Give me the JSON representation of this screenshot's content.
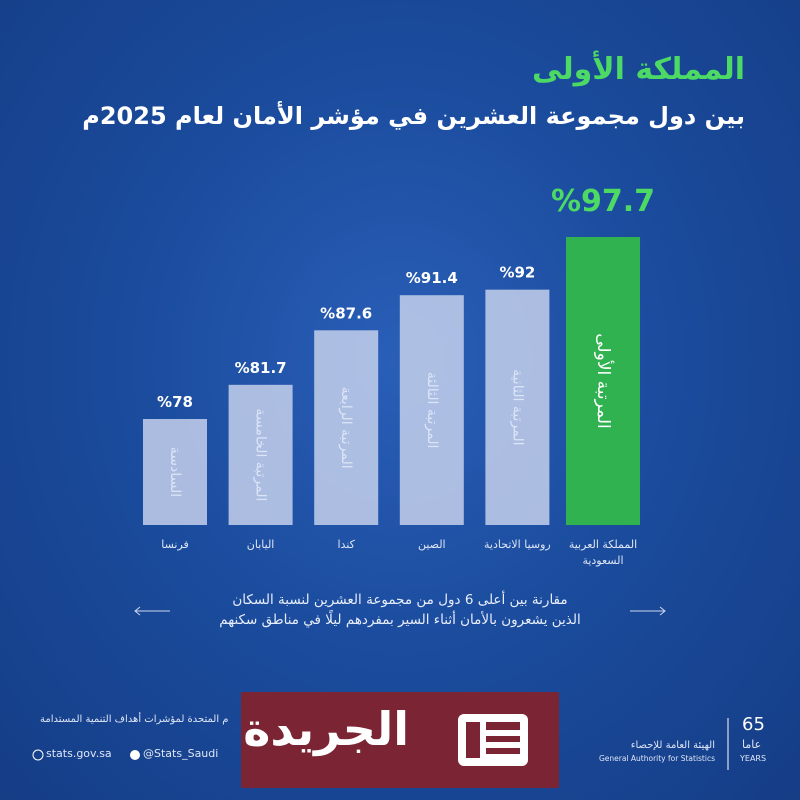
{
  "chart_data": {
    "type": "bar",
    "title": "المملكة الأولى",
    "subtitle": "بين دول مجموعة العشرين في مؤشر الأمان لعام 2025م",
    "categories": [
      "فرنسا",
      "اليابان",
      "كندا",
      "الصين",
      "روسيا الاتحادية",
      "المملكة العربية السعودية"
    ],
    "values": [
      78,
      81.7,
      87.6,
      91.4,
      92,
      97.7
    ],
    "value_labels": [
      "%78",
      "%81.7",
      "%87.6",
      "%91.4",
      "%92",
      "%97.7"
    ],
    "rank_labels": [
      "السادسة",
      "المرتبة الخامسة",
      "المرتبة الرابعة",
      "المرتبة الثالثة",
      "المرتبة الثانية",
      "المرتبة الأولى"
    ],
    "colors": [
      "#c6d0ec",
      "#c6d0ec",
      "#c6d0ec",
      "#c6d0ec",
      "#c6d0ec",
      "#2fb24f"
    ],
    "caption": [
      "مقارنة بين أعلى 6 دول من مجموعة العشرين لنسبة السكان",
      "الذين يشعرون بالأمان أثناء السير بمفردهم ليلًا في مناطق سكنهم"
    ]
  },
  "footer": {
    "note": "م المتحدة لمؤشرات أهداف التنمية المستدامة",
    "website": "stats.gov.sa",
    "handle": "@Stats_Saudi",
    "org_ar": "الهيئة العامة للإحصاء",
    "org_en": "General Authority for Statistics",
    "years_number": "65",
    "years_ar": "عاما",
    "years_en": "YEARS",
    "watermark": "الجريدة"
  }
}
